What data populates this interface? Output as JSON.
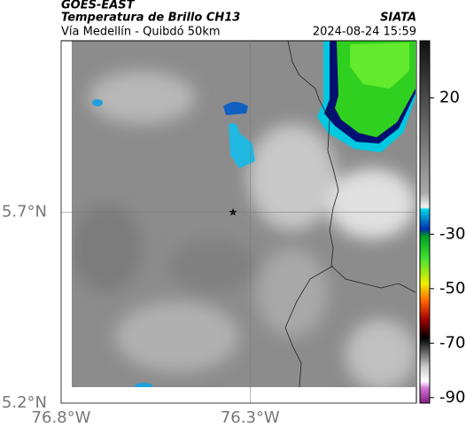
{
  "header": {
    "title": "GOES-EAST",
    "subtitle": "Temperatura de Brillo CH13",
    "route": "Vía Medellín - Quibdó 50km",
    "source": "SIATA",
    "timestamp": "2024-08-24 15:59"
  },
  "map": {
    "lon_lim": [
      -76.8,
      -75.86
    ],
    "lat_lim": [
      5.2,
      6.15
    ],
    "lon_ticks": [
      {
        "value": -76.8,
        "label": "76.8°W"
      },
      {
        "value": -76.3,
        "label": "76.3°W"
      }
    ],
    "lat_ticks": [
      {
        "value": 5.7,
        "label": "5.7°N"
      },
      {
        "value": 5.2,
        "label": "5.2°N"
      }
    ]
  },
  "colorbar": {
    "lim": [
      -92,
      41
    ],
    "ticks": [
      20,
      -30,
      -50,
      -70,
      -90
    ]
  }
}
